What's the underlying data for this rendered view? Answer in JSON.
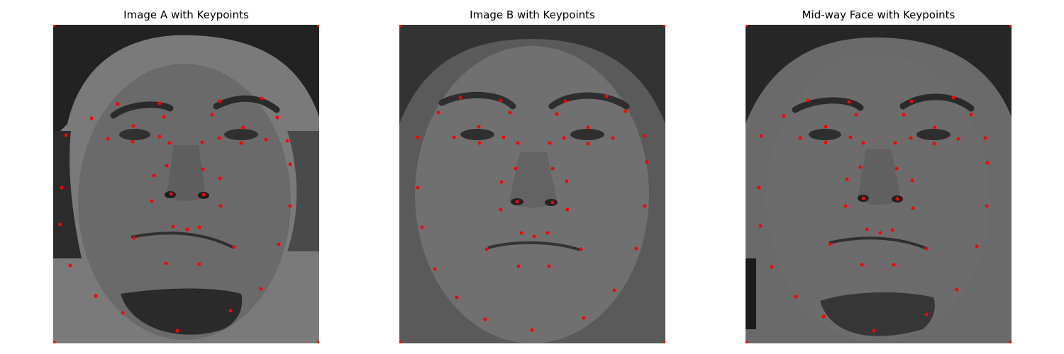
{
  "panels": [
    {
      "id": "a",
      "title": "Image A with Keypoints"
    },
    {
      "id": "b",
      "title": "Image B with Keypoints"
    },
    {
      "id": "mid",
      "title": "Mid-way Face with Keypoints"
    }
  ],
  "keypoint_color": "#ff0000",
  "face_tone": "#6e6e6e",
  "hair_tone": "#1f1f1f",
  "eyebrow_tone": "#2a2a2a"
}
